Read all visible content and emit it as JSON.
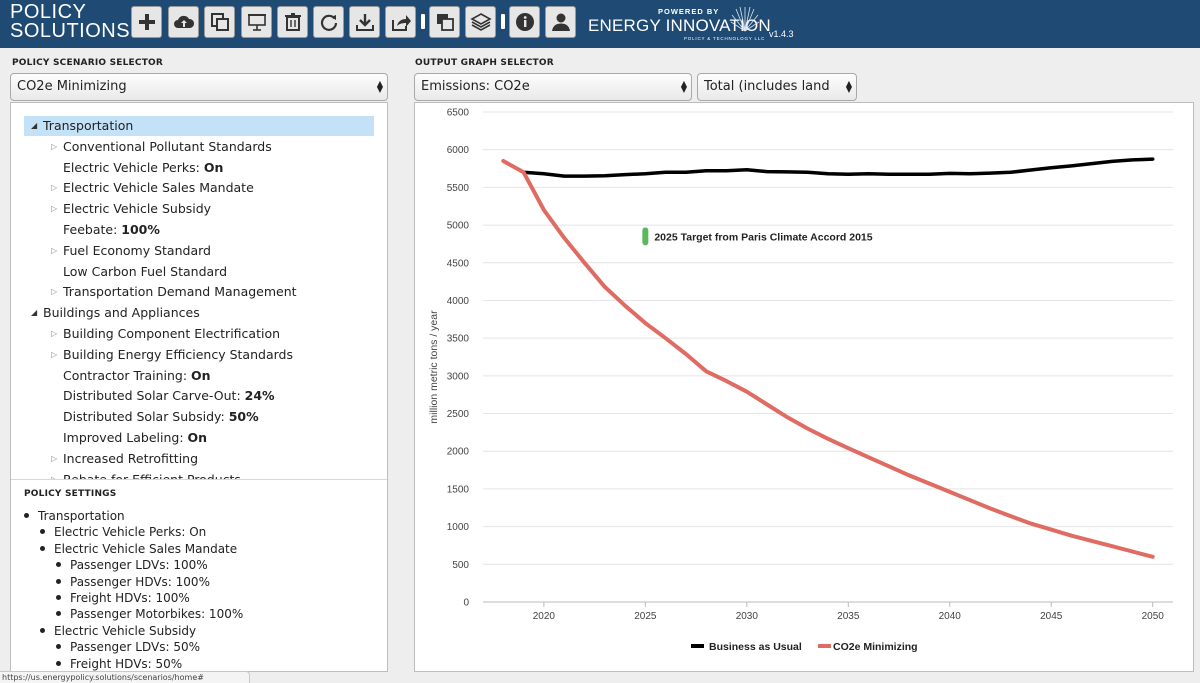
{
  "app": {
    "logo_line1": "POLICY",
    "logo_line2": "SOLUTIONS",
    "powered_by": "POWERED BY",
    "brand": "ENERGY INNOVATION",
    "brand_sub": "POLICY & TECHNOLOGY LLC",
    "version": "v1.4.3"
  },
  "toolbar": {
    "icons": [
      "plus-icon",
      "cloud-upload-icon",
      "copy-icon",
      "presentation-icon",
      "trash-icon",
      "refresh-icon",
      "download-icon",
      "share-icon",
      "windows-icon",
      "layers-icon",
      "info-icon",
      "user-icon"
    ]
  },
  "scenario": {
    "label": "POLICY SCENARIO SELECTOR",
    "selected": "CO2e Minimizing"
  },
  "tree": [
    {
      "level": 0,
      "open": true,
      "selected": true,
      "label": "Transportation",
      "value": ""
    },
    {
      "level": 1,
      "expandable": true,
      "label": "Conventional Pollutant Standards",
      "value": ""
    },
    {
      "level": 1,
      "expandable": false,
      "label": "Electric Vehicle Perks: ",
      "value": "On"
    },
    {
      "level": 1,
      "expandable": true,
      "label": "Electric Vehicle Sales Mandate",
      "value": ""
    },
    {
      "level": 1,
      "expandable": true,
      "label": "Electric Vehicle Subsidy",
      "value": ""
    },
    {
      "level": 1,
      "expandable": false,
      "label": "Feebate: ",
      "value": "100%"
    },
    {
      "level": 1,
      "expandable": true,
      "label": "Fuel Economy Standard",
      "value": ""
    },
    {
      "level": 1,
      "expandable": false,
      "label": "Low Carbon Fuel Standard",
      "value": ""
    },
    {
      "level": 1,
      "expandable": true,
      "label": "Transportation Demand Management",
      "value": ""
    },
    {
      "level": 0,
      "open": true,
      "selected": false,
      "label": "Buildings and Appliances",
      "value": ""
    },
    {
      "level": 1,
      "expandable": true,
      "label": "Building Component Electrification",
      "value": ""
    },
    {
      "level": 1,
      "expandable": true,
      "label": "Building Energy Efficiency Standards",
      "value": ""
    },
    {
      "level": 1,
      "expandable": false,
      "label": "Contractor Training: ",
      "value": "On"
    },
    {
      "level": 1,
      "expandable": false,
      "label": "Distributed Solar Carve-Out: ",
      "value": "24%"
    },
    {
      "level": 1,
      "expandable": false,
      "label": "Distributed Solar Subsidy: ",
      "value": "50%"
    },
    {
      "level": 1,
      "expandable": false,
      "label": "Improved Labeling: ",
      "value": "On"
    },
    {
      "level": 1,
      "expandable": true,
      "label": "Increased Retrofitting",
      "value": ""
    },
    {
      "level": 1,
      "expandable": true,
      "label": "Rebate for Efficient Products",
      "value": ""
    }
  ],
  "settings": {
    "title": "POLICY SETTINGS",
    "items": [
      {
        "level": 0,
        "text": "Transportation"
      },
      {
        "level": 1,
        "text": "Electric Vehicle Perks: On"
      },
      {
        "level": 1,
        "text": "Electric Vehicle Sales Mandate"
      },
      {
        "level": 2,
        "text": "Passenger LDVs: 100%"
      },
      {
        "level": 2,
        "text": "Passenger HDVs: 100%"
      },
      {
        "level": 2,
        "text": "Freight HDVs: 100%"
      },
      {
        "level": 2,
        "text": "Passenger Motorbikes: 100%"
      },
      {
        "level": 1,
        "text": "Electric Vehicle Subsidy"
      },
      {
        "level": 2,
        "text": "Passenger LDVs: 50%"
      },
      {
        "level": 2,
        "text": "Freight HDVs: 50%"
      }
    ]
  },
  "graph": {
    "label": "OUTPUT GRAPH SELECTOR",
    "selected": "Emissions: CO2e",
    "subselected": "Total (includes land use)"
  },
  "status_url": "https://us.energypolicy.solutions/scenarios/home#",
  "chart_data": {
    "type": "line",
    "title": "",
    "xlabel": "",
    "ylabel": "million metric tons / year",
    "xlim": [
      2017,
      2051
    ],
    "ylim": [
      0,
      6500
    ],
    "xticks": [
      2020,
      2025,
      2030,
      2035,
      2040,
      2045,
      2050
    ],
    "yticks": [
      0,
      500,
      1000,
      1500,
      2000,
      2500,
      3000,
      3500,
      4000,
      4500,
      5000,
      5500,
      6000,
      6500
    ],
    "grid": true,
    "legend_position": "bottom",
    "annotation": {
      "text": "2025 Target from Paris Climate Accord 2015",
      "x": 2025,
      "y": 4850,
      "color": "#5cb85c"
    },
    "series": [
      {
        "name": "Business as Usual",
        "color": "#000000",
        "x": [
          2019,
          2020,
          2021,
          2022,
          2023,
          2024,
          2025,
          2026,
          2027,
          2028,
          2029,
          2030,
          2031,
          2032,
          2033,
          2034,
          2035,
          2036,
          2037,
          2038,
          2039,
          2040,
          2041,
          2042,
          2043,
          2044,
          2045,
          2046,
          2047,
          2048,
          2049,
          2050
        ],
        "y": [
          5700,
          5680,
          5650,
          5650,
          5655,
          5670,
          5680,
          5700,
          5700,
          5720,
          5720,
          5735,
          5710,
          5705,
          5700,
          5680,
          5675,
          5680,
          5675,
          5675,
          5675,
          5685,
          5680,
          5690,
          5700,
          5730,
          5760,
          5785,
          5815,
          5845,
          5865,
          5875
        ]
      },
      {
        "name": "CO2e Minimizing",
        "color": "#e06b63",
        "x": [
          2018,
          2019,
          2020,
          2021,
          2022,
          2023,
          2024,
          2025,
          2026,
          2027,
          2028,
          2029,
          2030,
          2031,
          2032,
          2033,
          2034,
          2035,
          2036,
          2037,
          2038,
          2039,
          2040,
          2041,
          2042,
          2043,
          2044,
          2045,
          2046,
          2047,
          2048,
          2049,
          2050
        ],
        "y": [
          5850,
          5700,
          5200,
          4830,
          4500,
          4180,
          3930,
          3700,
          3500,
          3290,
          3060,
          2930,
          2790,
          2620,
          2450,
          2300,
          2165,
          2040,
          1920,
          1800,
          1680,
          1570,
          1460,
          1350,
          1240,
          1140,
          1040,
          960,
          880,
          810,
          740,
          670,
          600
        ]
      }
    ]
  }
}
